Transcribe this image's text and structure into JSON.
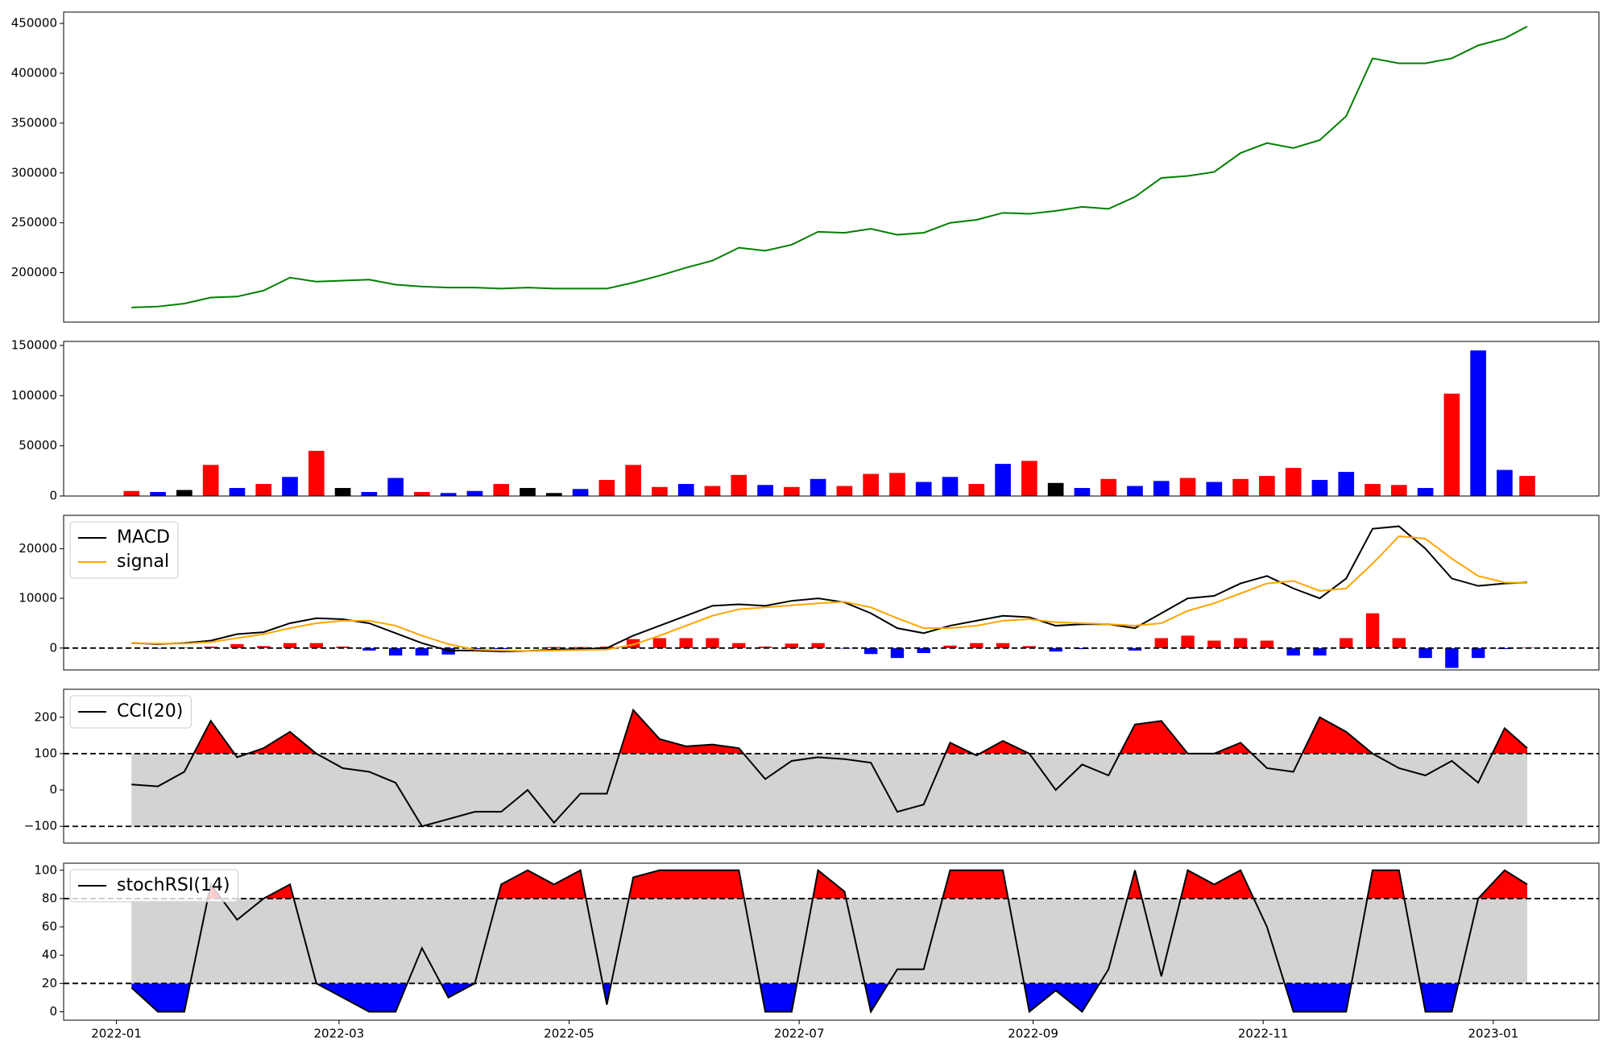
{
  "chart_data": [
    {
      "type": "line",
      "xlim": [
        18979,
        19386
      ],
      "ylim": [
        150400,
        461400
      ],
      "yticks": [
        200000,
        250000,
        300000,
        350000,
        400000,
        450000
      ],
      "x": [
        18997,
        19004,
        19011,
        19018,
        19025,
        19032,
        19039,
        19046,
        19053,
        19060,
        19067,
        19074,
        19081,
        19088,
        19095,
        19102,
        19109,
        19116,
        19123,
        19130,
        19137,
        19144,
        19151,
        19158,
        19165,
        19172,
        19179,
        19186,
        19193,
        19200,
        19207,
        19214,
        19221,
        19228,
        19235,
        19242,
        19249,
        19256,
        19263,
        19270,
        19277,
        19284,
        19291,
        19298,
        19305,
        19312,
        19319,
        19326,
        19333,
        19340,
        19347,
        19354,
        19361,
        19367
      ],
      "series": [
        {
          "color": "#008000",
          "values": [
            165000,
            166000,
            169000,
            175000,
            176000,
            182000,
            195000,
            191000,
            192000,
            193000,
            188000,
            186000,
            185000,
            185000,
            184000,
            185000,
            184000,
            184000,
            184000,
            190000,
            197000,
            205000,
            212000,
            225000,
            222000,
            228000,
            241000,
            240000,
            244000,
            238000,
            240000,
            250000,
            253000,
            260000,
            259000,
            262000,
            266000,
            264000,
            276000,
            295000,
            297000,
            301000,
            320000,
            330000,
            325000,
            333000,
            357000,
            415000,
            410000,
            410000,
            415000,
            428000,
            435000,
            447000
          ]
        }
      ]
    },
    {
      "type": "bar",
      "xlim": [
        18979,
        19386
      ],
      "ylim": [
        0,
        154000
      ],
      "yticks": [
        0,
        50000,
        100000,
        150000
      ],
      "x": [
        18997,
        19004,
        19011,
        19018,
        19025,
        19032,
        19039,
        19046,
        19053,
        19060,
        19067,
        19074,
        19081,
        19088,
        19095,
        19102,
        19109,
        19116,
        19123,
        19130,
        19137,
        19144,
        19151,
        19158,
        19165,
        19172,
        19179,
        19186,
        19193,
        19200,
        19207,
        19214,
        19221,
        19228,
        19235,
        19242,
        19249,
        19256,
        19263,
        19270,
        19277,
        19284,
        19291,
        19298,
        19305,
        19312,
        19319,
        19326,
        19333,
        19340,
        19347,
        19354,
        19361,
        19367
      ],
      "values": [
        5000,
        4000,
        6000,
        31000,
        8000,
        12000,
        19000,
        45000,
        8000,
        4000,
        18000,
        4000,
        3000,
        5000,
        12000,
        8000,
        3000,
        7000,
        16000,
        31000,
        9000,
        12000,
        10000,
        21000,
        11000,
        9000,
        17000,
        10000,
        22000,
        23000,
        14000,
        19000,
        12000,
        32000,
        35000,
        13000,
        8000,
        17000,
        10000,
        15000,
        18000,
        14000,
        17000,
        20000,
        28000,
        16000,
        24000,
        12000,
        11000,
        8000,
        102000,
        145000,
        26000,
        20000
      ],
      "colors": [
        "red",
        "blue",
        "black",
        "red",
        "blue",
        "red",
        "blue",
        "red",
        "black",
        "blue",
        "blue",
        "red",
        "blue",
        "blue",
        "red",
        "black",
        "black",
        "blue",
        "red",
        "red",
        "red",
        "blue",
        "red",
        "red",
        "blue",
        "red",
        "blue",
        "red",
        "red",
        "red",
        "blue",
        "blue",
        "red",
        "blue",
        "red",
        "black",
        "blue",
        "red",
        "blue",
        "blue",
        "red",
        "blue",
        "red",
        "red",
        "red",
        "blue",
        "blue",
        "red",
        "red",
        "blue",
        "red",
        "blue",
        "blue",
        "red"
      ]
    },
    {
      "type": "line",
      "xlim": [
        18979,
        19386
      ],
      "ylim": [
        -4400,
        26700
      ],
      "yticks": [
        0,
        10000,
        20000
      ],
      "hlines": [
        0
      ],
      "legend": "upper left",
      "x": [
        18997,
        19004,
        19011,
        19018,
        19025,
        19032,
        19039,
        19046,
        19053,
        19060,
        19067,
        19074,
        19081,
        19088,
        19095,
        19102,
        19109,
        19116,
        19123,
        19130,
        19137,
        19144,
        19151,
        19158,
        19165,
        19172,
        19179,
        19186,
        19193,
        19200,
        19207,
        19214,
        19221,
        19228,
        19235,
        19242,
        19249,
        19256,
        19263,
        19270,
        19277,
        19284,
        19291,
        19298,
        19305,
        19312,
        19319,
        19326,
        19333,
        19340,
        19347,
        19354,
        19361,
        19367
      ],
      "histogram": {
        "up_color": "red",
        "down_color": "blue",
        "values": [
          0,
          -100,
          100,
          300,
          800,
          400,
          1000,
          1000,
          300,
          -500,
          -1500,
          -1500,
          -1300,
          -200,
          -200,
          0,
          200,
          200,
          300,
          1800,
          2000,
          2000,
          2000,
          1000,
          300,
          900,
          1000,
          -100,
          -1200,
          -2000,
          -1000,
          500,
          1000,
          1000,
          400,
          -700,
          -200,
          0,
          -500,
          2000,
          2500,
          1500,
          2000,
          1500,
          -1500,
          -1500,
          2000,
          7000,
          2000,
          -2000,
          -4000,
          -2000,
          -200,
          100
        ]
      },
      "series": [
        {
          "name": "MACD",
          "color": "black",
          "values": [
            1000,
            800,
            1000,
            1500,
            2800,
            3200,
            5000,
            6000,
            5800,
            5000,
            3000,
            1000,
            -500,
            -500,
            -700,
            -600,
            -300,
            -200,
            0,
            2500,
            4500,
            6500,
            8500,
            8800,
            8500,
            9500,
            10000,
            9200,
            7000,
            4000,
            3000,
            4500,
            5500,
            6500,
            6200,
            4500,
            4800,
            4800,
            4000,
            7000,
            10000,
            10500,
            13000,
            14500,
            12000,
            10000,
            14000,
            24000,
            24500,
            20000,
            14000,
            12500,
            13000,
            13200
          ]
        },
        {
          "name": "signal",
          "color": "orange",
          "values": [
            1000,
            900,
            900,
            1200,
            2000,
            2800,
            4000,
            5000,
            5500,
            5500,
            4500,
            2500,
            800,
            -300,
            -500,
            -600,
            -500,
            -400,
            -300,
            700,
            2500,
            4500,
            6500,
            7800,
            8200,
            8600,
            9000,
            9300,
            8200,
            6000,
            4000,
            4000,
            4500,
            5500,
            5800,
            5200,
            5000,
            4800,
            4500,
            5000,
            7500,
            9000,
            11000,
            13000,
            13500,
            11500,
            12000,
            17000,
            22500,
            22000,
            18000,
            14500,
            13200,
            13100
          ]
        }
      ]
    },
    {
      "type": "line",
      "xlim": [
        18979,
        19386
      ],
      "ylim": [
        -146,
        277
      ],
      "yticks": [
        {
          "value": -100,
          "label": "−100"
        },
        0,
        100,
        200
      ],
      "hlines": [
        -100,
        100
      ],
      "legend": "upper left",
      "band_color": "#d3d3d3",
      "over_color": "red",
      "under_color": "blue",
      "x": [
        18997,
        19004,
        19011,
        19018,
        19025,
        19032,
        19039,
        19046,
        19053,
        19060,
        19067,
        19074,
        19081,
        19088,
        19095,
        19102,
        19109,
        19116,
        19123,
        19130,
        19137,
        19144,
        19151,
        19158,
        19165,
        19172,
        19179,
        19186,
        19193,
        19200,
        19207,
        19214,
        19221,
        19228,
        19235,
        19242,
        19249,
        19256,
        19263,
        19270,
        19277,
        19284,
        19291,
        19298,
        19305,
        19312,
        19319,
        19326,
        19333,
        19340,
        19347,
        19354,
        19361,
        19367
      ],
      "series": [
        {
          "name": "CCI(20)",
          "color": "black",
          "values": [
            15,
            10,
            50,
            190,
            90,
            115,
            160,
            100,
            60,
            50,
            20,
            -100,
            -80,
            -60,
            -60,
            0,
            -90,
            -10,
            -10,
            220,
            140,
            120,
            125,
            115,
            30,
            80,
            90,
            85,
            75,
            -60,
            -40,
            130,
            95,
            135,
            100,
            0,
            70,
            40,
            180,
            190,
            100,
            100,
            130,
            60,
            50,
            200,
            160,
            100,
            60,
            40,
            80,
            20,
            170,
            115
          ]
        }
      ]
    },
    {
      "type": "line",
      "xlim": [
        18979,
        19386
      ],
      "ylim": [
        -6,
        105
      ],
      "yticks": [
        0,
        20,
        40,
        60,
        80,
        100
      ],
      "hlines": [
        20,
        80
      ],
      "legend": "upper left",
      "band_color": "#d3d3d3",
      "over_color": "red",
      "under_color": "blue",
      "xticks": [
        {
          "value": 18993,
          "label": "2022-01"
        },
        {
          "value": 19052,
          "label": "2022-03"
        },
        {
          "value": 19113,
          "label": "2022-05"
        },
        {
          "value": 19174,
          "label": "2022-07"
        },
        {
          "value": 19236,
          "label": "2022-09"
        },
        {
          "value": 19297,
          "label": "2022-11"
        },
        {
          "value": 19358,
          "label": "2023-01"
        }
      ],
      "x": [
        18997,
        19004,
        19011,
        19018,
        19025,
        19032,
        19039,
        19046,
        19053,
        19060,
        19067,
        19074,
        19081,
        19088,
        19095,
        19102,
        19109,
        19116,
        19123,
        19130,
        19137,
        19144,
        19151,
        19158,
        19165,
        19172,
        19179,
        19186,
        19193,
        19200,
        19207,
        19214,
        19221,
        19228,
        19235,
        19242,
        19249,
        19256,
        19263,
        19270,
        19277,
        19284,
        19291,
        19298,
        19305,
        19312,
        19319,
        19326,
        19333,
        19340,
        19347,
        19354,
        19361,
        19367
      ],
      "series": [
        {
          "name": "stochRSI(14)",
          "color": "black",
          "values": [
            17,
            0,
            0,
            90,
            65,
            80,
            90,
            20,
            10,
            0,
            0,
            45,
            10,
            20,
            90,
            100,
            90,
            100,
            5,
            95,
            100,
            100,
            100,
            100,
            0,
            0,
            100,
            85,
            0,
            30,
            30,
            100,
            100,
            100,
            0,
            15,
            0,
            30,
            100,
            25,
            100,
            90,
            100,
            60,
            0,
            0,
            0,
            100,
            100,
            0,
            0,
            80,
            100,
            90
          ]
        }
      ]
    }
  ]
}
